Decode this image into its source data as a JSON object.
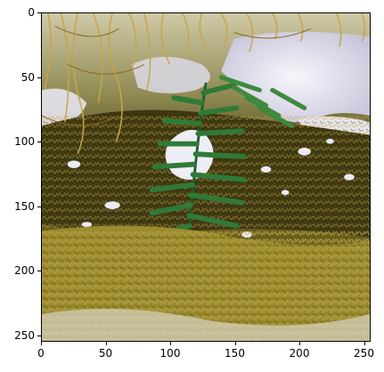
{
  "figure": {
    "image_description_name": "fern-moss-snow-photo"
  },
  "axes": {
    "x_ticks": [
      "0",
      "50",
      "100",
      "150",
      "200",
      "250"
    ],
    "y_ticks": [
      "0",
      "50",
      "100",
      "150",
      "200",
      "250"
    ],
    "xlim": [
      0,
      255
    ],
    "ylim": [
      0,
      255
    ]
  },
  "colors": {
    "frond_dark": "#1f5b2a",
    "frond_mid": "#2f7a37",
    "frond_light": "#4f9a44",
    "moss_gold": "#b39a3a",
    "moss_olive": "#6f6a22",
    "moss_dark": "#3b3510",
    "snow": "#eeeef6",
    "snow_shadow": "#c9c6dc"
  }
}
